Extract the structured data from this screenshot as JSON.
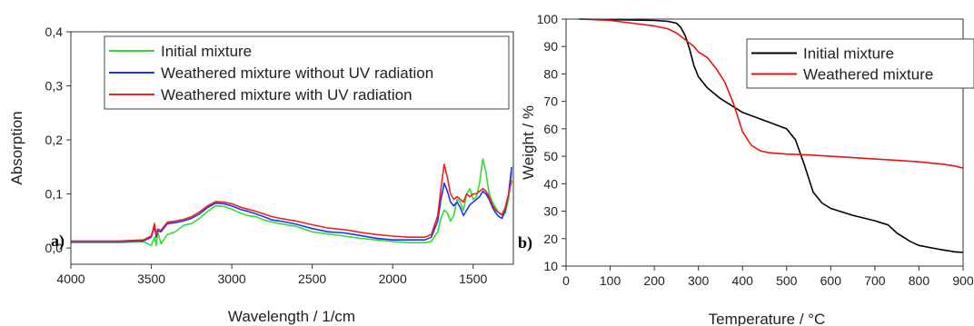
{
  "chart_data": [
    {
      "type": "line",
      "panel_label": "a)",
      "xlabel": "Wavelength / 1/cm",
      "ylabel": "Absorption",
      "xlim": [
        4000,
        1250
      ],
      "ylim": [
        -0.03,
        0.4
      ],
      "x_reversed": true,
      "grid": false,
      "legend_position": "top",
      "xticks": [
        {
          "v": 4000,
          "label": "4000"
        },
        {
          "v": 3500,
          "label": "3500"
        },
        {
          "v": 3000,
          "label": "3000"
        },
        {
          "v": 2500,
          "label": "2500"
        },
        {
          "v": 2000,
          "label": "2000"
        },
        {
          "v": 1500,
          "label": "1500"
        }
      ],
      "yticks": [
        {
          "v": 0.0,
          "label": "0,0"
        },
        {
          "v": 0.1,
          "label": "0,1"
        },
        {
          "v": 0.2,
          "label": "0,2"
        },
        {
          "v": 0.3,
          "label": "0,3"
        },
        {
          "v": 0.4,
          "label": "0,4"
        }
      ],
      "series": [
        {
          "name": "Initial mixture",
          "color": "#33dd33",
          "x": [
            4000,
            3700,
            3550,
            3500,
            3480,
            3470,
            3460,
            3440,
            3400,
            3350,
            3300,
            3250,
            3200,
            3150,
            3100,
            3050,
            3000,
            2950,
            2900,
            2850,
            2800,
            2750,
            2700,
            2600,
            2500,
            2400,
            2300,
            2200,
            2100,
            2000,
            1900,
            1800,
            1760,
            1720,
            1700,
            1680,
            1660,
            1640,
            1620,
            1600,
            1580,
            1560,
            1540,
            1520,
            1500,
            1480,
            1460,
            1440,
            1420,
            1400,
            1380,
            1360,
            1340,
            1320,
            1300,
            1280,
            1260
          ],
          "y": [
            0.01,
            0.01,
            0.012,
            0.005,
            0.02,
            0.005,
            0.03,
            0.008,
            0.025,
            0.03,
            0.042,
            0.045,
            0.055,
            0.068,
            0.078,
            0.077,
            0.072,
            0.065,
            0.06,
            0.058,
            0.052,
            0.048,
            0.045,
            0.04,
            0.03,
            0.026,
            0.022,
            0.018,
            0.015,
            0.012,
            0.01,
            0.01,
            0.012,
            0.03,
            0.055,
            0.07,
            0.065,
            0.05,
            0.06,
            0.09,
            0.085,
            0.07,
            0.1,
            0.11,
            0.09,
            0.095,
            0.12,
            0.165,
            0.14,
            0.1,
            0.085,
            0.075,
            0.065,
            0.06,
            0.065,
            0.09,
            0.14
          ]
        },
        {
          "name": "Weathered mixture without UV radiation",
          "color": "#2233ee",
          "x": [
            4000,
            3700,
            3550,
            3500,
            3480,
            3470,
            3460,
            3440,
            3400,
            3350,
            3300,
            3250,
            3200,
            3150,
            3100,
            3050,
            3000,
            2950,
            2900,
            2850,
            2800,
            2750,
            2700,
            2600,
            2500,
            2400,
            2300,
            2200,
            2100,
            2000,
            1900,
            1800,
            1760,
            1720,
            1700,
            1680,
            1660,
            1640,
            1620,
            1600,
            1580,
            1560,
            1540,
            1520,
            1500,
            1480,
            1460,
            1440,
            1420,
            1400,
            1380,
            1360,
            1340,
            1320,
            1300,
            1280,
            1260
          ],
          "y": [
            0.012,
            0.012,
            0.013,
            0.02,
            0.04,
            0.02,
            0.032,
            0.03,
            0.045,
            0.047,
            0.05,
            0.055,
            0.063,
            0.075,
            0.083,
            0.082,
            0.078,
            0.072,
            0.068,
            0.063,
            0.058,
            0.052,
            0.05,
            0.044,
            0.036,
            0.03,
            0.028,
            0.023,
            0.018,
            0.015,
            0.015,
            0.015,
            0.02,
            0.05,
            0.09,
            0.12,
            0.105,
            0.085,
            0.078,
            0.085,
            0.075,
            0.06,
            0.07,
            0.08,
            0.085,
            0.09,
            0.095,
            0.105,
            0.1,
            0.09,
            0.075,
            0.065,
            0.058,
            0.055,
            0.07,
            0.1,
            0.15
          ]
        },
        {
          "name": "Weathered mixture with UV radiation",
          "color": "#ee2222",
          "x": [
            4000,
            3700,
            3550,
            3500,
            3480,
            3470,
            3460,
            3440,
            3400,
            3350,
            3300,
            3250,
            3200,
            3150,
            3100,
            3050,
            3000,
            2950,
            2900,
            2850,
            2800,
            2750,
            2700,
            2600,
            2500,
            2400,
            2300,
            2200,
            2100,
            2000,
            1900,
            1800,
            1760,
            1720,
            1700,
            1680,
            1660,
            1640,
            1620,
            1600,
            1580,
            1560,
            1540,
            1520,
            1500,
            1480,
            1460,
            1440,
            1420,
            1400,
            1380,
            1360,
            1340,
            1320,
            1300,
            1280,
            1260
          ],
          "y": [
            0.013,
            0.013,
            0.015,
            0.022,
            0.045,
            0.024,
            0.035,
            0.033,
            0.048,
            0.05,
            0.053,
            0.058,
            0.067,
            0.078,
            0.086,
            0.085,
            0.082,
            0.076,
            0.072,
            0.068,
            0.063,
            0.058,
            0.055,
            0.05,
            0.043,
            0.037,
            0.034,
            0.029,
            0.025,
            0.022,
            0.02,
            0.02,
            0.025,
            0.06,
            0.11,
            0.155,
            0.13,
            0.1,
            0.09,
            0.095,
            0.09,
            0.085,
            0.1,
            0.095,
            0.1,
            0.1,
            0.105,
            0.11,
            0.105,
            0.095,
            0.08,
            0.07,
            0.065,
            0.062,
            0.075,
            0.1,
            0.125
          ]
        }
      ]
    },
    {
      "type": "line",
      "panel_label": "b)",
      "xlabel": "Temperature / °C",
      "ylabel": "Weight / %",
      "xlim": [
        0,
        900
      ],
      "ylim": [
        10,
        100
      ],
      "grid": false,
      "legend_position": "top-right",
      "xticks": [
        {
          "v": 0,
          "label": "0"
        },
        {
          "v": 100,
          "label": "100"
        },
        {
          "v": 200,
          "label": "200"
        },
        {
          "v": 300,
          "label": "300"
        },
        {
          "v": 400,
          "label": "400"
        },
        {
          "v": 500,
          "label": "500"
        },
        {
          "v": 600,
          "label": "600"
        },
        {
          "v": 700,
          "label": "700"
        },
        {
          "v": 800,
          "label": "800"
        },
        {
          "v": 900,
          "label": "900"
        }
      ],
      "yticks": [
        {
          "v": 10,
          "label": "10"
        },
        {
          "v": 20,
          "label": "20"
        },
        {
          "v": 30,
          "label": "30"
        },
        {
          "v": 40,
          "label": "40"
        },
        {
          "v": 50,
          "label": "50"
        },
        {
          "v": 60,
          "label": "60"
        },
        {
          "v": 70,
          "label": "70"
        },
        {
          "v": 80,
          "label": "80"
        },
        {
          "v": 90,
          "label": "90"
        },
        {
          "v": 100,
          "label": "100"
        }
      ],
      "series": [
        {
          "name": "Initial mixture",
          "color": "#000000",
          "x": [
            30,
            100,
            200,
            230,
            250,
            260,
            270,
            280,
            290,
            300,
            320,
            350,
            380,
            400,
            450,
            500,
            520,
            540,
            560,
            580,
            600,
            650,
            700,
            730,
            750,
            780,
            800,
            850,
            870,
            880,
            900
          ],
          "y": [
            100,
            99.8,
            99.5,
            99.2,
            98.5,
            97,
            94,
            89,
            83,
            79,
            75,
            71,
            68,
            66,
            63,
            60,
            56,
            47,
            37,
            33,
            31,
            28.5,
            26.5,
            25,
            22,
            19,
            17.5,
            16,
            15.5,
            15.2,
            15
          ]
        },
        {
          "name": "Weathered mixture",
          "color": "#ee1111",
          "x": [
            30,
            100,
            150,
            200,
            230,
            250,
            270,
            290,
            300,
            320,
            340,
            360,
            370,
            380,
            390,
            400,
            420,
            440,
            460,
            500,
            550,
            600,
            650,
            700,
            750,
            800,
            850,
            880,
            900
          ],
          "y": [
            100,
            99.5,
            98.5,
            97.5,
            96.5,
            95,
            92.5,
            90,
            88,
            86,
            82,
            77,
            73,
            69,
            64,
            59,
            54,
            52,
            51.3,
            50.8,
            50.5,
            50,
            49.5,
            49,
            48.5,
            48,
            47.2,
            46.5,
            45.7
          ]
        }
      ]
    }
  ]
}
